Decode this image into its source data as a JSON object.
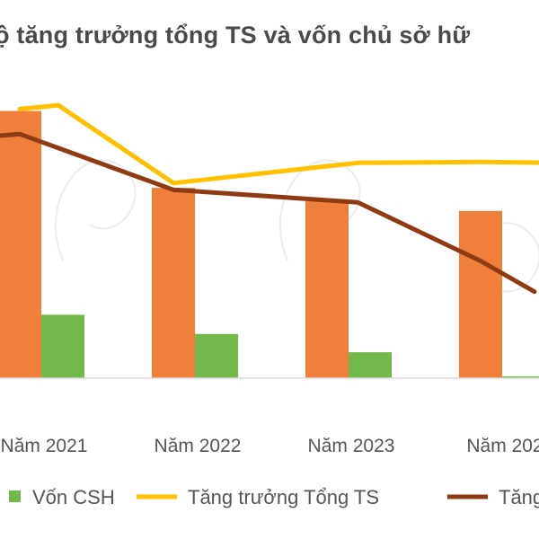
{
  "chart_data": {
    "type": "bar",
    "title": "ộ tăng trưởng tổng TS và vốn chủ sở hữ",
    "categories": [
      "Năm 2021",
      "Năm 2022",
      "Năm 2023",
      "Năm 202"
    ],
    "ylim": [
      0,
      300
    ],
    "grid": false,
    "legend_position": "bottom",
    "bar_series": [
      {
        "key": "orange",
        "color": "#f07f3c",
        "values": [
          278,
          198,
          184,
          174
        ]
      },
      {
        "name": "Vốn CSH",
        "key": "green",
        "color": "#72b84a",
        "values": [
          66,
          46,
          27,
          2
        ]
      }
    ],
    "line_series": [
      {
        "name": "Tăng trưởng Tổng TS",
        "key": "tongts",
        "color": "#ffc000",
        "points": [
          [
            0.0,
            280
          ],
          [
            0.25,
            284
          ],
          [
            1.0,
            203
          ],
          [
            2.2,
            224
          ],
          [
            3.0,
            225
          ],
          [
            3.5,
            224
          ]
        ]
      },
      {
        "name": "Tăng",
        "key": "von",
        "color": "#8e3b13",
        "points": [
          [
            -0.3,
            250
          ],
          [
            0.0,
            254
          ],
          [
            1.0,
            196
          ],
          [
            2.2,
            183
          ],
          [
            3.0,
            122
          ],
          [
            3.35,
            90
          ]
        ]
      }
    ]
  },
  "legend": [
    {
      "key": "green",
      "label": "Vốn CSH",
      "color": "#72b84a",
      "kind": "box"
    },
    {
      "key": "tongts",
      "label": "Tăng trưởng Tổng TS",
      "color": "#ffc000",
      "kind": "line"
    },
    {
      "key": "von",
      "label": "Tăng",
      "color": "#8e3b13",
      "kind": "line"
    }
  ]
}
